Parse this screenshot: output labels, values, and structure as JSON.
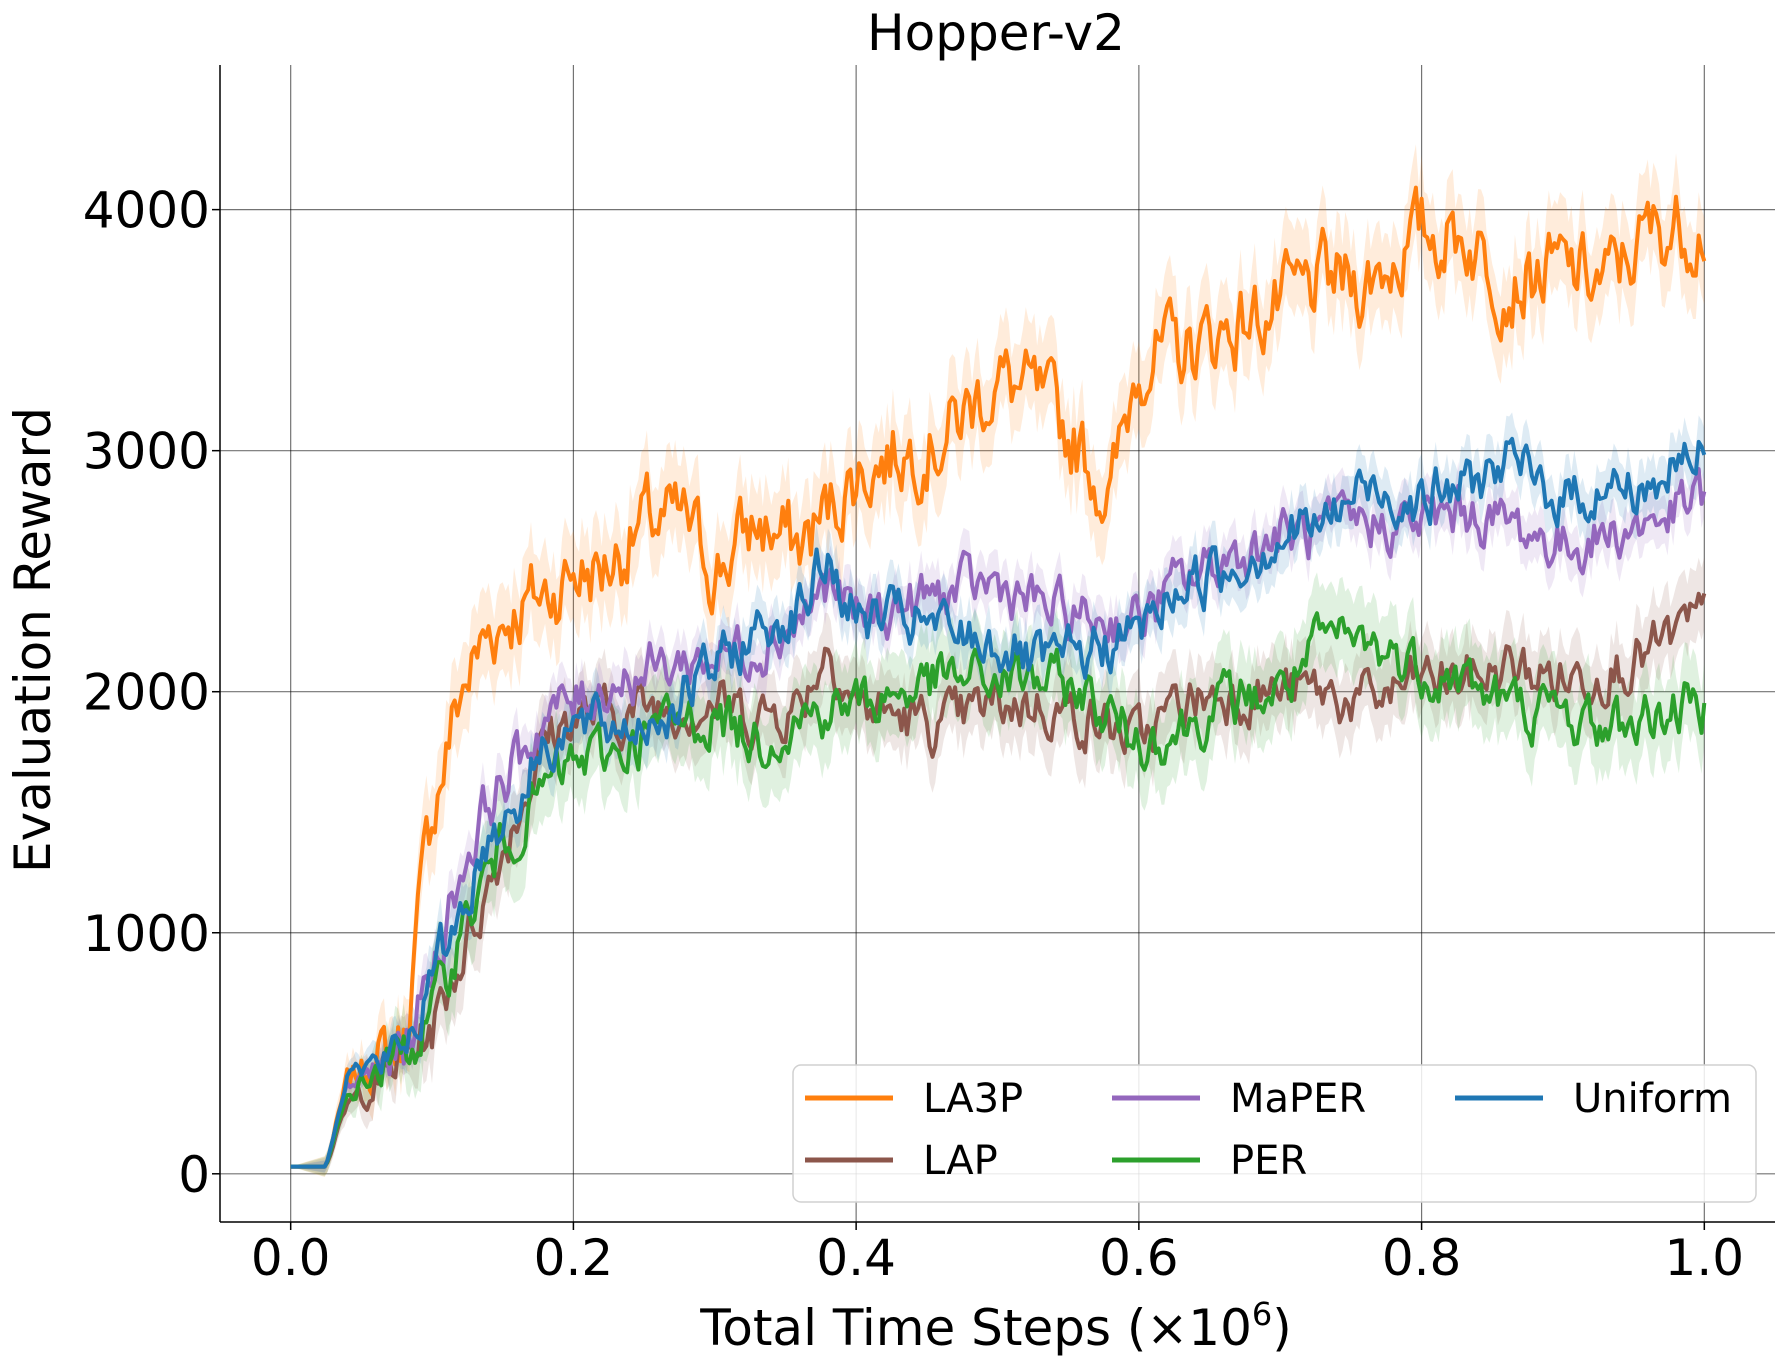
{
  "chart_data": {
    "type": "line",
    "title": "Hopper-v2",
    "xlabel_main": "Total Time Steps (×10",
    "xlabel_exp": "6",
    "xlabel_close": ")",
    "ylabel": "Evaluation Reward",
    "xlim": [
      -0.05,
      1.05
    ],
    "ylim": [
      -200,
      4600
    ],
    "xticks": [
      0.0,
      0.2,
      0.4,
      0.6,
      0.8,
      1.0
    ],
    "xtick_labels": [
      "0.0",
      "0.2",
      "0.4",
      "0.6",
      "0.8",
      "1.0"
    ],
    "yticks": [
      0,
      1000,
      2000,
      3000,
      4000
    ],
    "ytick_labels": [
      "0",
      "1000",
      "2000",
      "3000",
      "4000"
    ],
    "grid": true,
    "legend_position": "bottom-right",
    "series": [
      {
        "name": "LA3P",
        "color": "#ff7f0e",
        "band": 180,
        "x": [
          0,
          0.02,
          0.025,
          0.04,
          0.06,
          0.08,
          0.1,
          0.12,
          0.14,
          0.16,
          0.18,
          0.2,
          0.22,
          0.25,
          0.28,
          0.3,
          0.33,
          0.36,
          0.4,
          0.43,
          0.46,
          0.5,
          0.53,
          0.56,
          0.58,
          0.6,
          0.63,
          0.66,
          0.7,
          0.73,
          0.76,
          0.8,
          0.83,
          0.86,
          0.9,
          0.93,
          0.96,
          1.0
        ],
        "y": [
          30,
          30,
          30,
          380,
          470,
          560,
          1500,
          2000,
          2250,
          2350,
          2400,
          2500,
          2500,
          2700,
          2700,
          2500,
          2700,
          2600,
          2900,
          3000,
          3050,
          3300,
          3200,
          3000,
          2800,
          3400,
          3400,
          3500,
          3600,
          3700,
          3700,
          3900,
          3900,
          3700,
          3750,
          3700,
          3900,
          3950
        ]
      },
      {
        "name": "LAP",
        "color": "#8c564b",
        "band": 150,
        "x": [
          0,
          0.02,
          0.025,
          0.04,
          0.06,
          0.08,
          0.1,
          0.12,
          0.14,
          0.16,
          0.18,
          0.2,
          0.23,
          0.26,
          0.3,
          0.33,
          0.36,
          0.38,
          0.4,
          0.43,
          0.46,
          0.5,
          0.53,
          0.56,
          0.6,
          0.63,
          0.66,
          0.7,
          0.73,
          0.76,
          0.8,
          0.83,
          0.86,
          0.9,
          0.93,
          0.96,
          1.0
        ],
        "y": [
          30,
          30,
          30,
          280,
          380,
          480,
          600,
          900,
          1200,
          1500,
          1800,
          1900,
          1900,
          1950,
          1950,
          1900,
          1950,
          2200,
          1950,
          1900,
          1850,
          1950,
          1950,
          1900,
          1800,
          1950,
          2000,
          2000,
          2000,
          1950,
          2050,
          2050,
          2100,
          2050,
          2100,
          2150,
          2300
        ]
      },
      {
        "name": "MaPER",
        "color": "#9467bd",
        "band": 100,
        "x": [
          0,
          0.02,
          0.025,
          0.04,
          0.06,
          0.08,
          0.1,
          0.12,
          0.14,
          0.16,
          0.18,
          0.2,
          0.23,
          0.26,
          0.3,
          0.33,
          0.36,
          0.38,
          0.4,
          0.43,
          0.46,
          0.5,
          0.53,
          0.56,
          0.6,
          0.63,
          0.66,
          0.7,
          0.73,
          0.76,
          0.8,
          0.83,
          0.86,
          0.9,
          0.93,
          0.96,
          1.0
        ],
        "y": [
          30,
          30,
          30,
          350,
          430,
          520,
          850,
          1250,
          1550,
          1700,
          1900,
          1950,
          2050,
          2100,
          2150,
          2200,
          2300,
          2450,
          2300,
          2350,
          2400,
          2450,
          2350,
          2300,
          2300,
          2450,
          2550,
          2650,
          2650,
          2700,
          2700,
          2750,
          2700,
          2600,
          2650,
          2700,
          2800
        ]
      },
      {
        "name": "PER",
        "color": "#2ca02c",
        "band": 170,
        "x": [
          0,
          0.02,
          0.025,
          0.04,
          0.06,
          0.08,
          0.1,
          0.12,
          0.14,
          0.16,
          0.18,
          0.2,
          0.23,
          0.26,
          0.3,
          0.33,
          0.36,
          0.4,
          0.43,
          0.46,
          0.5,
          0.53,
          0.56,
          0.6,
          0.63,
          0.66,
          0.7,
          0.73,
          0.76,
          0.8,
          0.83,
          0.86,
          0.9,
          0.93,
          0.96,
          1.0
        ],
        "y": [
          30,
          30,
          30,
          320,
          420,
          500,
          650,
          1000,
          1250,
          1450,
          1600,
          1700,
          1750,
          1850,
          1900,
          1800,
          1900,
          1950,
          2000,
          2050,
          2050,
          2050,
          2000,
          1800,
          1850,
          1950,
          2000,
          2200,
          2200,
          2100,
          2050,
          1950,
          1900,
          1850,
          1900,
          1950
        ]
      },
      {
        "name": "Uniform",
        "color": "#1f77b4",
        "band": 110,
        "x": [
          0,
          0.02,
          0.025,
          0.04,
          0.06,
          0.08,
          0.1,
          0.12,
          0.14,
          0.16,
          0.18,
          0.2,
          0.23,
          0.26,
          0.3,
          0.33,
          0.36,
          0.38,
          0.4,
          0.43,
          0.46,
          0.5,
          0.53,
          0.56,
          0.6,
          0.63,
          0.66,
          0.7,
          0.73,
          0.76,
          0.8,
          0.83,
          0.86,
          0.9,
          0.93,
          0.96,
          1.0
        ],
        "y": [
          30,
          30,
          30,
          420,
          450,
          520,
          800,
          1100,
          1400,
          1550,
          1800,
          1850,
          1850,
          1900,
          2100,
          2250,
          2350,
          2550,
          2300,
          2300,
          2250,
          2200,
          2100,
          2150,
          2250,
          2450,
          2500,
          2650,
          2700,
          2850,
          2800,
          2850,
          2950,
          2800,
          2850,
          2850,
          3000
        ]
      }
    ]
  }
}
